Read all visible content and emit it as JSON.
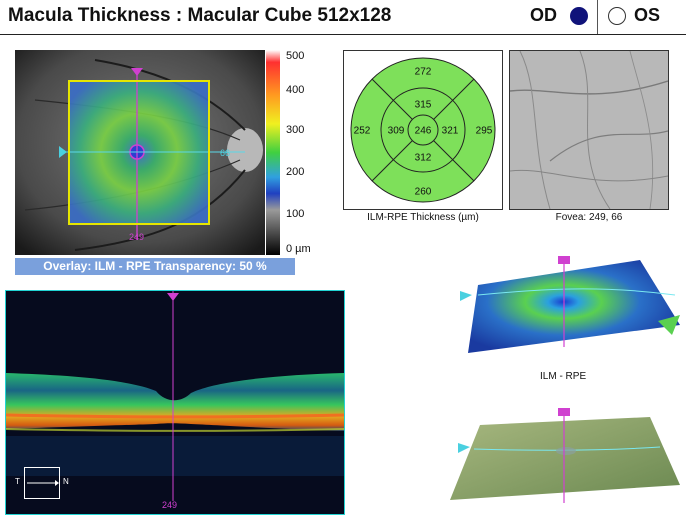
{
  "header": {
    "title": "Macula Thickness : Macular Cube 512x128",
    "od_label": "OD",
    "os_label": "OS",
    "od_color": "#10137a"
  },
  "fundus": {
    "overlay_caption": "Overlay: ILM - RPE  Transparency: 50 %",
    "marker_right": "66",
    "marker_bottom": "249"
  },
  "scale": {
    "labels": [
      "500",
      "400",
      "300",
      "200",
      "100",
      "0 µm"
    ]
  },
  "etdrs": {
    "caption": "ILM-RPE Thickness (µm)",
    "fill_color": "#7ee05a",
    "outer_top": "272",
    "outer_left": "252",
    "outer_right": "295",
    "outer_bottom": "260",
    "inner_top": "315",
    "inner_left": "309",
    "inner_right": "321",
    "inner_bottom": "312",
    "center": "246"
  },
  "fovea": {
    "caption": "Fovea: 249, 66"
  },
  "bscan": {
    "position_label": "249",
    "orient_t": "T",
    "orient_n": "N"
  },
  "surface": {
    "caption": "ILM - RPE"
  }
}
